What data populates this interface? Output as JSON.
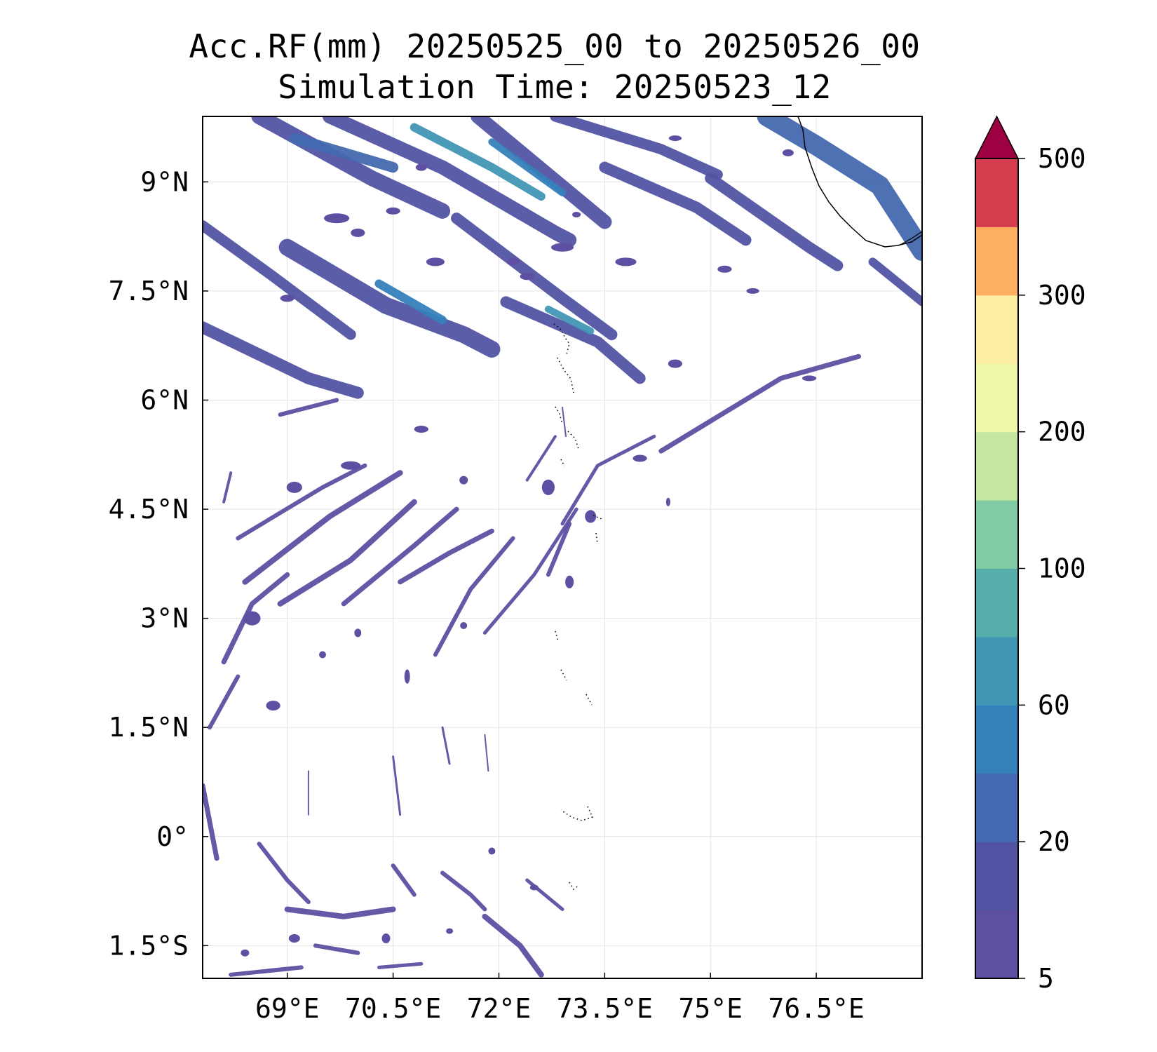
{
  "title": {
    "line1": "Acc.RF(mm) 20250525_00 to 20250526_00",
    "line2": "Simulation Time: 20250523_12"
  },
  "map": {
    "lon_range": [
      67.8,
      78.0
    ],
    "lat_range": [
      -1.95,
      9.9
    ],
    "gridlines": true,
    "lon_ticks": [
      {
        "value": 69,
        "label": "69°E"
      },
      {
        "value": 70.5,
        "label": "70.5°E"
      },
      {
        "value": 72,
        "label": "72°E"
      },
      {
        "value": 73.5,
        "label": "73.5°E"
      },
      {
        "value": 75,
        "label": "75°E"
      },
      {
        "value": 76.5,
        "label": "76.5°E"
      }
    ],
    "lat_ticks": [
      {
        "value": 9,
        "label": "9°N"
      },
      {
        "value": 7.5,
        "label": "7.5°N"
      },
      {
        "value": 6,
        "label": "6°N"
      },
      {
        "value": 4.5,
        "label": "4.5°N"
      },
      {
        "value": 3,
        "label": "3°N"
      },
      {
        "value": 1.5,
        "label": "1.5°N"
      },
      {
        "value": 0,
        "label": "0°"
      },
      {
        "value": -1.5,
        "label": "1.5°S"
      }
    ]
  },
  "colorbar": {
    "levels": [
      5,
      10,
      20,
      40,
      60,
      80,
      100,
      150,
      200,
      250,
      300,
      400,
      500
    ],
    "colors": [
      "#5e4fa2",
      "#5254a3",
      "#4469b0",
      "#3581ba",
      "#4196b5",
      "#56adaa",
      "#80cba4",
      "#c4e69e",
      "#eff8a6",
      "#feeea1",
      "#fdae61",
      "#d53e4f"
    ],
    "extend_color": "#9e0142",
    "tick_labels": [
      {
        "level_index": 0,
        "label": "5"
      },
      {
        "level_index": 2,
        "label": "20"
      },
      {
        "level_index": 4,
        "label": "60"
      },
      {
        "level_index": 6,
        "label": "100"
      },
      {
        "level_index": 8,
        "label": "200"
      },
      {
        "level_index": 10,
        "label": "300"
      },
      {
        "level_index": 12,
        "label": "500"
      }
    ]
  },
  "rain_features": {
    "bands": [
      {
        "pts": [
          [
            68.6,
            9.9
          ],
          [
            70.2,
            9.05
          ],
          [
            71.2,
            8.6
          ]
        ],
        "w": 0.22,
        "c": 1
      },
      {
        "pts": [
          [
            69.1,
            9.6
          ],
          [
            70.5,
            9.2
          ]
        ],
        "w": 0.15,
        "c": 2
      },
      {
        "pts": [
          [
            69.6,
            9.9
          ],
          [
            71.2,
            9.2
          ],
          [
            72.8,
            8.3
          ],
          [
            73.0,
            8.2
          ]
        ],
        "w": 0.2,
        "c": 1
      },
      {
        "pts": [
          [
            70.8,
            9.75
          ],
          [
            71.9,
            9.2
          ],
          [
            72.6,
            8.8
          ]
        ],
        "w": 0.12,
        "c": 4
      },
      {
        "pts": [
          [
            71.7,
            9.9
          ],
          [
            73.5,
            8.45
          ]
        ],
        "w": 0.2,
        "c": 1
      },
      {
        "pts": [
          [
            71.9,
            9.55
          ],
          [
            72.9,
            8.85
          ]
        ],
        "w": 0.1,
        "c": 3
      },
      {
        "pts": [
          [
            72.8,
            9.9
          ],
          [
            74.3,
            9.45
          ],
          [
            75.1,
            9.1
          ]
        ],
        "w": 0.15,
        "c": 1
      },
      {
        "pts": [
          [
            73.5,
            9.2
          ],
          [
            74.8,
            8.65
          ],
          [
            75.5,
            8.2
          ]
        ],
        "w": 0.16,
        "c": 1
      },
      {
        "pts": [
          [
            75.0,
            9.05
          ],
          [
            76.4,
            8.1
          ],
          [
            76.8,
            7.85
          ]
        ],
        "w": 0.16,
        "c": 1
      },
      {
        "pts": [
          [
            75.8,
            9.9
          ],
          [
            76.5,
            9.5
          ],
          [
            77.4,
            8.95
          ],
          [
            78.0,
            8.05
          ]
        ],
        "w": 0.28,
        "c": 2
      },
      {
        "pts": [
          [
            77.3,
            7.9
          ],
          [
            78.0,
            7.35
          ]
        ],
        "w": 0.12,
        "c": 1
      },
      {
        "pts": [
          [
            67.8,
            8.4
          ],
          [
            68.8,
            7.7
          ],
          [
            69.9,
            6.9
          ]
        ],
        "w": 0.15,
        "c": 1
      },
      {
        "pts": [
          [
            69.0,
            8.1
          ],
          [
            70.4,
            7.3
          ],
          [
            71.5,
            6.9
          ],
          [
            71.9,
            6.7
          ]
        ],
        "w": 0.24,
        "c": 1
      },
      {
        "pts": [
          [
            70.3,
            7.6
          ],
          [
            71.2,
            7.1
          ]
        ],
        "w": 0.12,
        "c": 3
      },
      {
        "pts": [
          [
            71.4,
            8.5
          ],
          [
            72.9,
            7.4
          ],
          [
            73.6,
            6.9
          ]
        ],
        "w": 0.16,
        "c": 1
      },
      {
        "pts": [
          [
            72.1,
            7.35
          ],
          [
            73.4,
            6.8
          ],
          [
            74.0,
            6.3
          ]
        ],
        "w": 0.16,
        "c": 1
      },
      {
        "pts": [
          [
            72.7,
            7.25
          ],
          [
            73.3,
            6.95
          ]
        ],
        "w": 0.1,
        "c": 4
      },
      {
        "pts": [
          [
            67.8,
            7.0
          ],
          [
            69.3,
            6.3
          ],
          [
            70.0,
            6.1
          ]
        ],
        "w": 0.17,
        "c": 1
      },
      {
        "pts": [
          [
            68.9,
            5.8
          ],
          [
            69.7,
            6.0
          ]
        ],
        "w": 0.06,
        "c": 0
      },
      {
        "pts": [
          [
            74.3,
            5.3
          ],
          [
            76.0,
            6.3
          ],
          [
            77.1,
            6.6
          ]
        ],
        "w": 0.07,
        "c": 0
      },
      {
        "pts": [
          [
            68.3,
            4.1
          ],
          [
            69.5,
            4.8
          ],
          [
            70.1,
            5.1
          ]
        ],
        "w": 0.06,
        "c": 0
      },
      {
        "pts": [
          [
            68.4,
            3.5
          ],
          [
            69.6,
            4.4
          ],
          [
            70.6,
            5.0
          ]
        ],
        "w": 0.08,
        "c": 0
      },
      {
        "pts": [
          [
            68.9,
            3.2
          ],
          [
            69.9,
            3.8
          ],
          [
            70.8,
            4.6
          ]
        ],
        "w": 0.08,
        "c": 0
      },
      {
        "pts": [
          [
            69.8,
            3.2
          ],
          [
            70.8,
            4.0
          ],
          [
            71.4,
            4.5
          ]
        ],
        "w": 0.07,
        "c": 0
      },
      {
        "pts": [
          [
            70.6,
            3.5
          ],
          [
            71.3,
            3.9
          ],
          [
            71.9,
            4.2
          ]
        ],
        "w": 0.07,
        "c": 0
      },
      {
        "pts": [
          [
            71.1,
            2.5
          ],
          [
            71.6,
            3.4
          ],
          [
            72.2,
            4.1
          ]
        ],
        "w": 0.06,
        "c": 0
      },
      {
        "pts": [
          [
            71.8,
            2.8
          ],
          [
            72.5,
            3.6
          ],
          [
            73.1,
            4.5
          ]
        ],
        "w": 0.05,
        "c": 0
      },
      {
        "pts": [
          [
            72.7,
            3.6
          ],
          [
            73.0,
            4.3
          ]
        ],
        "w": 0.06,
        "c": 0
      },
      {
        "pts": [
          [
            68.1,
            2.4
          ],
          [
            68.5,
            3.2
          ],
          [
            69.0,
            3.6
          ]
        ],
        "w": 0.07,
        "c": 0
      },
      {
        "pts": [
          [
            67.9,
            1.5
          ],
          [
            68.3,
            2.2
          ]
        ],
        "w": 0.06,
        "c": 0
      },
      {
        "pts": [
          [
            72.9,
            4.3
          ],
          [
            73.4,
            5.1
          ],
          [
            74.2,
            5.5
          ]
        ],
        "w": 0.05,
        "c": 0
      },
      {
        "pts": [
          [
            72.4,
            4.9
          ],
          [
            72.8,
            5.5
          ]
        ],
        "w": 0.04,
        "c": 0
      },
      {
        "pts": [
          [
            67.8,
            0.7
          ],
          [
            68.0,
            -0.3
          ]
        ],
        "w": 0.07,
        "c": 0
      },
      {
        "pts": [
          [
            68.6,
            -0.1
          ],
          [
            69.0,
            -0.6
          ],
          [
            69.3,
            -0.9
          ]
        ],
        "w": 0.06,
        "c": 0
      },
      {
        "pts": [
          [
            69.0,
            -1.0
          ],
          [
            69.8,
            -1.1
          ],
          [
            70.5,
            -1.0
          ]
        ],
        "w": 0.08,
        "c": 0
      },
      {
        "pts": [
          [
            69.4,
            -1.5
          ],
          [
            70.0,
            -1.6
          ]
        ],
        "w": 0.06,
        "c": 0
      },
      {
        "pts": [
          [
            70.5,
            -0.4
          ],
          [
            70.8,
            -0.8
          ]
        ],
        "w": 0.06,
        "c": 0
      },
      {
        "pts": [
          [
            71.2,
            -0.5
          ],
          [
            71.6,
            -0.8
          ],
          [
            71.8,
            -1.0
          ]
        ],
        "w": 0.06,
        "c": 0
      },
      {
        "pts": [
          [
            71.8,
            -1.1
          ],
          [
            72.3,
            -1.5
          ],
          [
            72.6,
            -1.9
          ]
        ],
        "w": 0.08,
        "c": 0
      },
      {
        "pts": [
          [
            72.4,
            -0.6
          ],
          [
            72.9,
            -1.0
          ]
        ],
        "w": 0.05,
        "c": 0
      },
      {
        "pts": [
          [
            68.2,
            -1.9
          ],
          [
            69.2,
            -1.8
          ]
        ],
        "w": 0.06,
        "c": 0
      },
      {
        "pts": [
          [
            70.3,
            -1.8
          ],
          [
            70.9,
            -1.75
          ]
        ],
        "w": 0.05,
        "c": 0
      },
      {
        "pts": [
          [
            69.3,
            0.9
          ],
          [
            69.3,
            0.3
          ]
        ],
        "w": 0.02,
        "c": 0
      },
      {
        "pts": [
          [
            70.5,
            1.1
          ],
          [
            70.6,
            0.3
          ]
        ],
        "w": 0.03,
        "c": 0
      },
      {
        "pts": [
          [
            71.2,
            1.5
          ],
          [
            71.3,
            1.0
          ]
        ],
        "w": 0.03,
        "c": 0
      },
      {
        "pts": [
          [
            71.8,
            1.4
          ],
          [
            71.85,
            0.9
          ]
        ],
        "w": 0.02,
        "c": 0
      },
      {
        "pts": [
          [
            72.9,
            5.9
          ],
          [
            72.95,
            5.5
          ]
        ],
        "w": 0.02,
        "c": 0
      },
      {
        "pts": [
          [
            68.1,
            4.6
          ],
          [
            68.2,
            5.0
          ]
        ],
        "w": 0.04,
        "c": 0
      }
    ],
    "blobs": [
      [
        70.0,
        8.3,
        0.1,
        0.06
      ],
      [
        69.7,
        8.5,
        0.18,
        0.07
      ],
      [
        71.1,
        7.9,
        0.13,
        0.06
      ],
      [
        72.4,
        7.7,
        0.1,
        0.05
      ],
      [
        73.8,
        7.9,
        0.15,
        0.06
      ],
      [
        74.5,
        6.5,
        0.1,
        0.06
      ],
      [
        75.2,
        7.8,
        0.1,
        0.05
      ],
      [
        75.6,
        7.5,
        0.09,
        0.04
      ],
      [
        72.9,
        8.1,
        0.16,
        0.06
      ],
      [
        74.5,
        9.6,
        0.09,
        0.04
      ],
      [
        70.9,
        9.2,
        0.08,
        0.05
      ],
      [
        72.2,
        7.9,
        0.09,
        0.05
      ],
      [
        70.5,
        8.6,
        0.1,
        0.05
      ],
      [
        69.0,
        7.4,
        0.1,
        0.05
      ],
      [
        70.9,
        5.6,
        0.1,
        0.05
      ],
      [
        69.9,
        5.1,
        0.14,
        0.06
      ],
      [
        69.1,
        4.8,
        0.11,
        0.08
      ],
      [
        72.7,
        4.8,
        0.09,
        0.11
      ],
      [
        73.3,
        4.4,
        0.08,
        0.09
      ],
      [
        74.0,
        5.2,
        0.1,
        0.05
      ],
      [
        68.5,
        3.0,
        0.12,
        0.1
      ],
      [
        68.8,
        1.8,
        0.1,
        0.07
      ],
      [
        70.7,
        2.2,
        0.04,
        0.1
      ],
      [
        73.0,
        3.5,
        0.06,
        0.09
      ],
      [
        69.5,
        2.5,
        0.05,
        0.05
      ],
      [
        70.0,
        2.8,
        0.05,
        0.06
      ],
      [
        71.5,
        2.9,
        0.05,
        0.05
      ],
      [
        69.1,
        -1.4,
        0.08,
        0.06
      ],
      [
        70.4,
        -1.4,
        0.06,
        0.07
      ],
      [
        71.9,
        -0.2,
        0.05,
        0.05
      ],
      [
        72.5,
        -0.7,
        0.06,
        0.04
      ],
      [
        68.4,
        -1.6,
        0.06,
        0.05
      ],
      [
        71.3,
        -1.3,
        0.05,
        0.04
      ],
      [
        74.4,
        4.6,
        0.03,
        0.06
      ],
      [
        71.5,
        4.9,
        0.06,
        0.06
      ],
      [
        76.4,
        6.3,
        0.1,
        0.04
      ],
      [
        73.1,
        8.55,
        0.06,
        0.04
      ],
      [
        76.1,
        9.4,
        0.08,
        0.05
      ]
    ]
  }
}
